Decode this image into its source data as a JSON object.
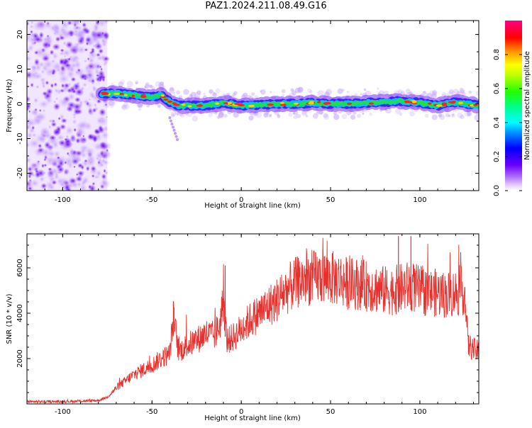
{
  "figure": {
    "title": "PAZ1.2024.211.08.49.G16"
  },
  "chart_data": [
    {
      "type": "heatmap",
      "xlabel": "Height of straight line (km)",
      "ylabel": "Frequency (Hz)",
      "xlim": [
        -120,
        133
      ],
      "ylim": [
        -25,
        24
      ],
      "xticks": [
        -100,
        -50,
        0,
        50,
        100
      ],
      "yticks": [
        -20,
        -10,
        0,
        10,
        20
      ],
      "grid": false,
      "colorbar": {
        "label": "Normalized spectral amplitude",
        "ticks": [
          0.0,
          0.2,
          0.4,
          0.6,
          0.8
        ],
        "range": [
          0,
          1
        ]
      },
      "noise_region_x": [
        -120,
        -75
      ],
      "ridge": {
        "x": [
          -78,
          -70,
          -60,
          -50,
          -45,
          -40,
          -35,
          -30,
          -20,
          -10,
          0,
          10,
          20,
          30,
          40,
          50,
          60,
          70,
          80,
          90,
          100,
          110,
          120,
          133
        ],
        "frequency": [
          3,
          3,
          2.5,
          2,
          2.5,
          0.5,
          -0.5,
          -0.5,
          -0.5,
          0.3,
          -0.5,
          -0.3,
          0,
          0,
          0.3,
          0,
          0,
          0.3,
          0.5,
          0.8,
          0.3,
          -0.5,
          0.5,
          -0.5
        ]
      }
    },
    {
      "type": "line",
      "xlabel": "Height of straight line (km)",
      "ylabel": "SNR (10 * v/v)",
      "xlim": [
        -120,
        133
      ],
      "ylim": [
        0,
        7500
      ],
      "xticks": [
        -100,
        -50,
        0,
        50,
        100
      ],
      "yticks": [
        2000,
        4000,
        6000
      ],
      "grid": false,
      "series": [
        {
          "color": "#e8302c",
          "x": [
            -120,
            -100,
            -80,
            -75,
            -70,
            -65,
            -60,
            -55,
            -50,
            -45,
            -40,
            -38,
            -35,
            -30,
            -25,
            -20,
            -15,
            -12,
            -10,
            -8,
            -5,
            0,
            5,
            10,
            15,
            20,
            25,
            30,
            35,
            40,
            45,
            50,
            55,
            60,
            65,
            70,
            75,
            80,
            85,
            90,
            95,
            100,
            105,
            110,
            115,
            120,
            125,
            127,
            130,
            133
          ],
          "values": [
            100,
            100,
            150,
            300,
            700,
            1000,
            1300,
            1500,
            1700,
            2000,
            2200,
            3800,
            2300,
            2600,
            2800,
            3100,
            3000,
            3500,
            4600,
            2800,
            2900,
            3300,
            3700,
            4000,
            4300,
            4600,
            5000,
            5300,
            5500,
            5550,
            5600,
            5550,
            5500,
            5300,
            5300,
            5200,
            5100,
            5000,
            5000,
            5100,
            5200,
            5000,
            4900,
            4900,
            4800,
            4900,
            5000,
            2600,
            2400,
            2300
          ],
          "spikes": [
            {
              "x": -38,
              "value": 4500
            },
            {
              "x": -9,
              "value": 6100
            },
            {
              "x": 88,
              "value": 7400
            },
            {
              "x": 95,
              "value": 7400
            }
          ]
        }
      ]
    }
  ]
}
